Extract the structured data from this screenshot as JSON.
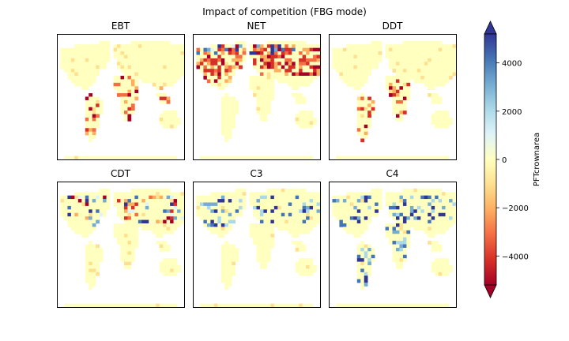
{
  "figure": {
    "title": "Impact of competition (FBG mode)"
  },
  "chart_data": {
    "type": "heatmap",
    "title": "Impact of competition (FBG mode)",
    "panels": [
      {
        "name": "EBT",
        "dominant": "near-zero",
        "highlights": [
          {
            "region": "S America",
            "sign": "negative"
          },
          {
            "region": "Africa",
            "sign": "negative"
          },
          {
            "region": "SE Asia",
            "sign": "negative"
          }
        ]
      },
      {
        "name": "NET",
        "dominant": "negative",
        "highlights": [
          {
            "region": "N America",
            "sign": "negative"
          },
          {
            "region": "Eurasia",
            "sign": "negative"
          },
          {
            "region": "Boreal",
            "sign": "mixed"
          }
        ]
      },
      {
        "name": "DDT",
        "dominant": "near-zero",
        "highlights": [
          {
            "region": "S America",
            "sign": "negative"
          },
          {
            "region": "Africa",
            "sign": "negative"
          }
        ]
      },
      {
        "name": "CDT",
        "dominant": "near-zero",
        "highlights": [
          {
            "region": "N America",
            "sign": "mixed"
          },
          {
            "region": "Eurasia",
            "sign": "mixed"
          }
        ]
      },
      {
        "name": "C3",
        "dominant": "near-zero",
        "highlights": [
          {
            "region": "N America",
            "sign": "positive"
          },
          {
            "region": "Eurasia",
            "sign": "positive"
          }
        ]
      },
      {
        "name": "C4",
        "dominant": "near-zero",
        "highlights": [
          {
            "region": "S America",
            "sign": "positive"
          },
          {
            "region": "Africa",
            "sign": "positive"
          },
          {
            "region": "N America",
            "sign": "positive"
          },
          {
            "region": "Eurasia",
            "sign": "positive"
          }
        ]
      }
    ],
    "colorbar": {
      "label": "PFTcrownarea",
      "min": -5200,
      "max": 5200,
      "ticks": [
        -4000,
        -2000,
        0,
        2000,
        4000
      ],
      "tick_labels": [
        "−4000",
        "−2000",
        "0",
        "2000",
        "4000"
      ],
      "colormap": "RdYlBu",
      "colors": [
        "#a50026",
        "#d73027",
        "#f46d43",
        "#fdae61",
        "#fee090",
        "#ffffbf",
        "#e0f3f8",
        "#abd9e9",
        "#74add1",
        "#4575b4",
        "#313695"
      ]
    }
  }
}
